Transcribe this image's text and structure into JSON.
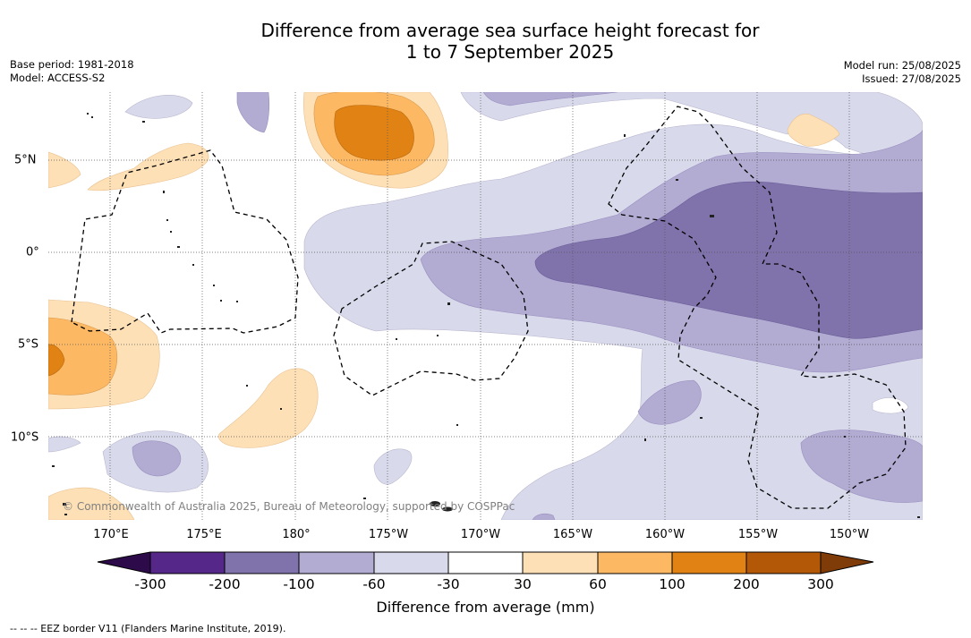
{
  "title": {
    "line1": "Difference from average sea surface height forecast for",
    "line2": "1 to 7 September 2025"
  },
  "meta": {
    "base_period": "Base period: 1981-2018",
    "model": "Model: ACCESS-S2",
    "model_run": "Model run: 25/08/2025",
    "issued": "Issued: 27/08/2025"
  },
  "map": {
    "longitude_labels": [
      "170°E",
      "175°E",
      "180°",
      "175°W",
      "170°W",
      "165°W",
      "160°W",
      "155°W",
      "150°W"
    ],
    "latitude_labels": [
      "5°N",
      "0°",
      "5°S",
      "10°S"
    ],
    "copyright": "© Commonwealth of Australia 2025, Bureau of Meteorology, supported by COSPPac",
    "colors": {
      "neg_300_plus": "#3b0f52",
      "neg_200_300": "#542788",
      "neg_100_200": "#8073ac",
      "neg_60_100": "#b2abd2",
      "neg_30_60": "#d8daeb",
      "neutral": "#ffffff",
      "pos_30_60": "#fee0b6",
      "pos_60_100": "#fdb863",
      "pos_100_200": "#e08214",
      "pos_200_300": "#b35806",
      "pos_300_plus": "#7f3b08"
    }
  },
  "colorbar": {
    "ticks": [
      "-300",
      "-200",
      "-100",
      "-60",
      "-30",
      "30",
      "60",
      "100",
      "200",
      "300"
    ],
    "title": "Difference from average (mm)"
  },
  "footnote": "--  --  -- EEZ border V11 (Flanders Marine Institute, 2019)."
}
